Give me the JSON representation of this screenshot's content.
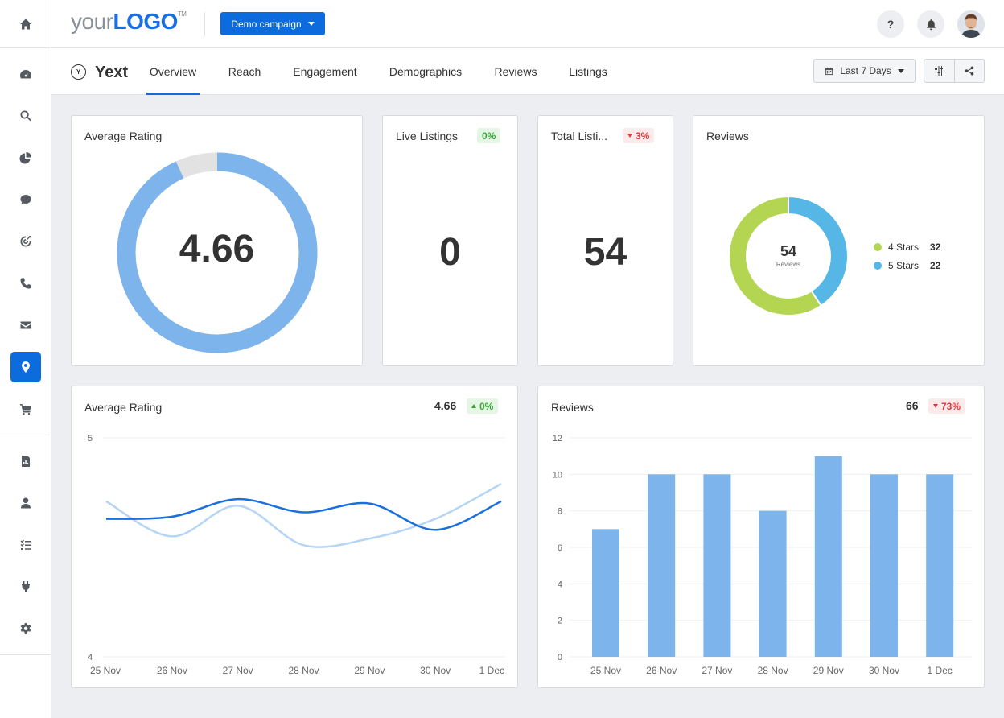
{
  "header": {
    "logo_your": "your",
    "logo_brand": "LOGO",
    "logo_tm": "TM",
    "campaign_label": "Demo campaign",
    "help_label": "?"
  },
  "sidebar": {
    "items": [
      "home-icon",
      "dashboard-icon",
      "search-icon",
      "pie-chart-icon",
      "chat-icon",
      "target-icon",
      "phone-icon",
      "mail-icon",
      "location-pin-icon",
      "cart-icon",
      "report-icon",
      "user-icon",
      "tasks-icon",
      "plug-icon",
      "gear-icon"
    ],
    "active": "location-pin-icon"
  },
  "subheader": {
    "title": "Yext",
    "tabs": [
      "Overview",
      "Reach",
      "Engagement",
      "Demographics",
      "Reviews",
      "Listings"
    ],
    "active_tab": "Overview",
    "date_range": "Last 7 Days"
  },
  "cards": {
    "average_rating": {
      "title": "Average Rating",
      "value": "4.66",
      "max": 5
    },
    "live_listings": {
      "title": "Live Listings",
      "value": "0",
      "change": "0%"
    },
    "total_listings": {
      "title": "Total Listi...",
      "value": "54",
      "change": "3%"
    },
    "reviews_donut": {
      "title": "Reviews",
      "total": "54",
      "sublabel": "Reviews",
      "legend": [
        {
          "label": "4 Stars",
          "value": "32",
          "color": "#b3d552"
        },
        {
          "label": "5 Stars",
          "value": "22",
          "color": "#56b6e6"
        }
      ]
    },
    "rating_trend": {
      "title": "Average Rating",
      "value": "4.66",
      "change": "0%"
    },
    "reviews_trend": {
      "title": "Reviews",
      "value": "66",
      "change": "73%"
    }
  },
  "colors": {
    "accent": "#0d6cdd",
    "ring": "#7db4ec",
    "ring_rest": "#e2e2e2",
    "line_current": "#1a6fe0",
    "line_previous": "#b5d5f6",
    "bar": "#7db4ec"
  },
  "chart_data": [
    {
      "type": "line",
      "title": "Average Rating",
      "x": [
        "25 Nov",
        "26 Nov",
        "27 Nov",
        "28 Nov",
        "29 Nov",
        "30 Nov",
        "1 Dec"
      ],
      "ylim": [
        4,
        5
      ],
      "y_ticks": [
        "5",
        "4"
      ],
      "series": [
        {
          "values": [
            4.63,
            4.64,
            4.72,
            4.66,
            4.7,
            4.58,
            4.71
          ]
        },
        {
          "values": [
            4.71,
            4.55,
            4.69,
            4.51,
            4.54,
            4.63,
            4.79
          ]
        }
      ]
    },
    {
      "type": "bar",
      "title": "Reviews",
      "categories": [
        "25 Nov",
        "26 Nov",
        "27 Nov",
        "28 Nov",
        "29 Nov",
        "30 Nov",
        "1 Dec"
      ],
      "values": [
        7,
        10,
        10,
        8,
        11,
        10,
        10
      ],
      "ylim": [
        0,
        12
      ],
      "y_ticks": [
        "0",
        "2",
        "4",
        "6",
        "8",
        "10",
        "12"
      ]
    }
  ]
}
